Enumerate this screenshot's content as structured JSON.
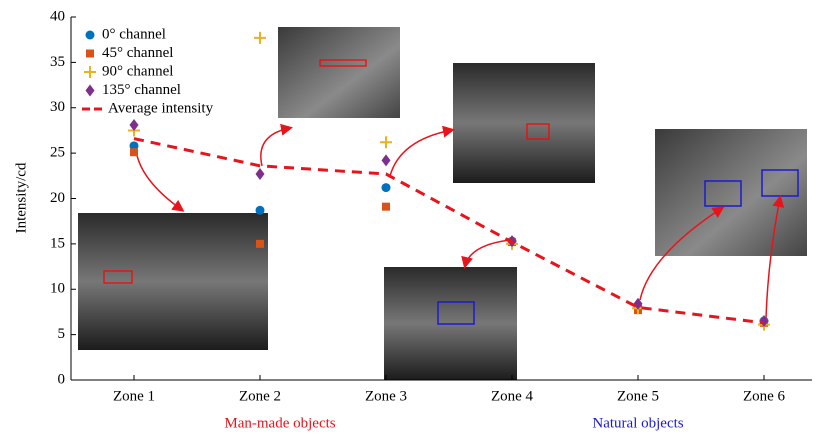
{
  "chart_data": {
    "type": "scatter",
    "y_label": "Intensity/cd",
    "categories": [
      "Zone 1",
      "Zone 2",
      "Zone 3",
      "Zone 4",
      "Zone 5",
      "Zone 6"
    ],
    "ylim": [
      0,
      40
    ],
    "yticks": [
      0,
      5,
      10,
      15,
      20,
      25,
      30,
      35,
      40
    ],
    "series": [
      {
        "name": "0° channel",
        "color": "#0072bd",
        "marker": "circle",
        "values": [
          25.8,
          18.7,
          21.2,
          15.3,
          8.0,
          6.5
        ]
      },
      {
        "name": "45° channel",
        "color": "#d95319",
        "marker": "square",
        "values": [
          25.1,
          15.0,
          19.1,
          15.2,
          7.7,
          6.3
        ]
      },
      {
        "name": "90° channel",
        "color": "#edb120",
        "marker": "plus",
        "values": [
          27.5,
          37.7,
          26.2,
          15.0,
          7.9,
          6.1
        ]
      },
      {
        "name": "135° channel",
        "color": "#7e2f8e",
        "marker": "diamond",
        "values": [
          28.1,
          22.7,
          24.2,
          15.3,
          8.4,
          6.5
        ]
      },
      {
        "name": "Average intensity",
        "color": "#e8141c",
        "marker": "dashed-line",
        "values": [
          26.6,
          23.6,
          22.7,
          15.2,
          8.0,
          6.3
        ]
      }
    ],
    "group_labels": [
      {
        "text": "Man-made objects",
        "color": "#e8141c"
      },
      {
        "text": "Natural objects",
        "color": "#1a1ad0"
      }
    ]
  }
}
